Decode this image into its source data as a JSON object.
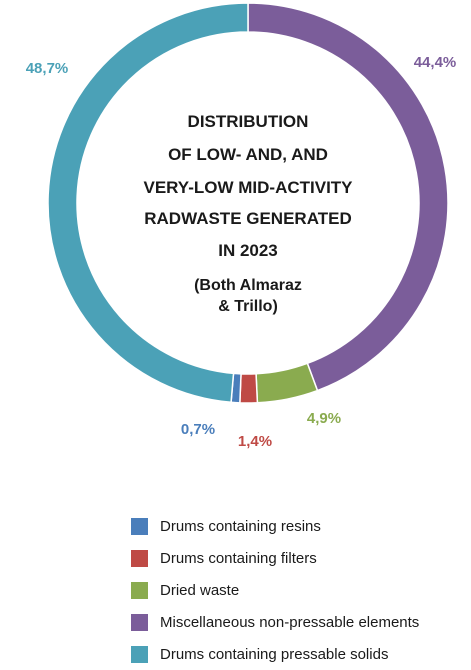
{
  "chart_data": {
    "type": "donut",
    "title_lines": [
      "DISTRIBUTION",
      "OF LOW- AND, AND",
      "VERY-LOW MID-ACTIVITY",
      "RADWASTE GENERATED",
      "IN 2023"
    ],
    "subtitle_lines": [
      "(Both Almaraz",
      "& Trillo)"
    ],
    "slices": [
      {
        "name": "Miscellaneous non-pressable elements",
        "value": 44.4,
        "label": "44,4%",
        "color": "#7b5d9a"
      },
      {
        "name": "Dried waste",
        "value": 4.9,
        "label": "4,9%",
        "color": "#8aab4f"
      },
      {
        "name": "Drums containing filters",
        "value": 1.4,
        "label": "1,4%",
        "color": "#bf4a45"
      },
      {
        "name": "Drums containing resins",
        "value": 0.7,
        "label": "0,7%",
        "color": "#4a7ebb"
      },
      {
        "name": "Drums containing pressable solids",
        "value": 48.7,
        "label": "48,7%",
        "color": "#4ba1b7"
      }
    ],
    "legend": [
      {
        "label": "Drums containing resins",
        "color": "#4a7ebb"
      },
      {
        "label": "Drums containing filters",
        "color": "#bf4a45"
      },
      {
        "label": "Dried waste",
        "color": "#8aab4f"
      },
      {
        "label": "Miscellaneous non-pressable elements",
        "color": "#7b5d9a"
      },
      {
        "label": "Drums containing pressable solids",
        "color": "#4ba1b7"
      }
    ],
    "legend_position": "bottom"
  }
}
